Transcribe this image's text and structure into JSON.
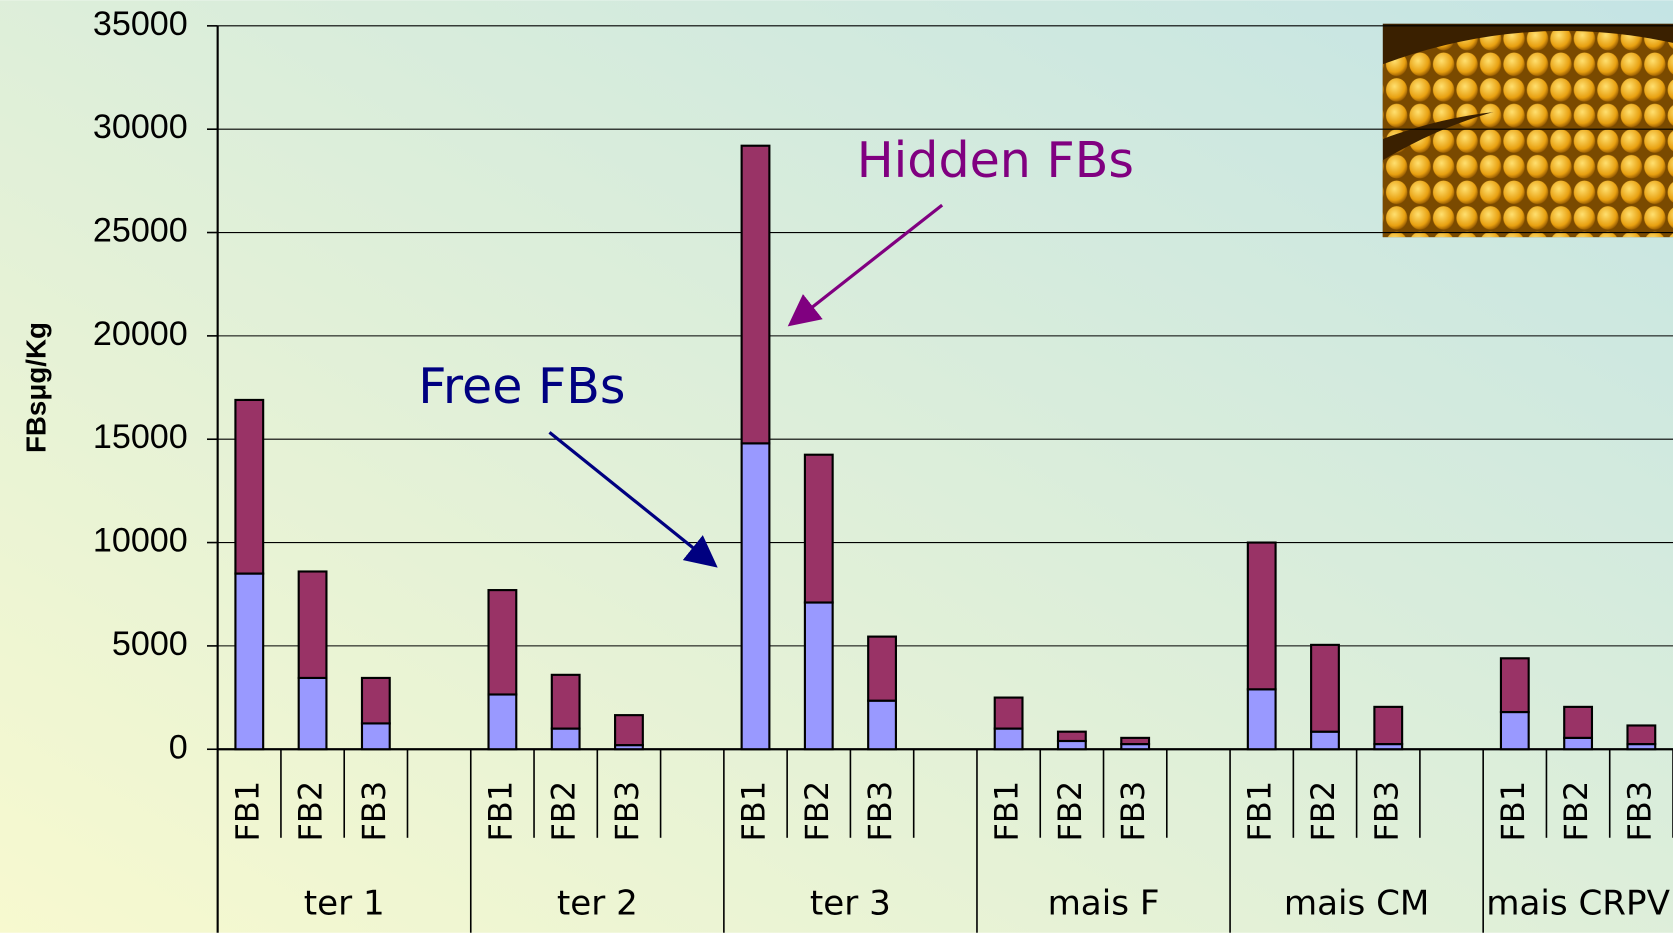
{
  "chart_data": {
    "type": "stacked_bar",
    "y_label": "FBsμg/Kg",
    "groups": [
      "ter 1",
      "ter 2",
      "ter 3",
      "mais F",
      "mais CM",
      "mais CRPV"
    ],
    "categories": [
      "FB1",
      "FB2",
      "FB3",
      null,
      "FB1",
      "FB2",
      "FB3",
      null,
      "FB1",
      "FB2",
      "FB3",
      null,
      "FB1",
      "FB2",
      "FB3",
      null,
      "FB1",
      "FB2",
      "FB3",
      null,
      "FB1",
      "FB2",
      "FB3"
    ],
    "series": [
      {
        "name": "Free FBs",
        "color": "#9999ff",
        "values": [
          8500,
          3450,
          1250,
          null,
          2650,
          1000,
          200,
          null,
          14800,
          7100,
          2350,
          null,
          1000,
          400,
          250,
          null,
          2900,
          850,
          250,
          null,
          1800,
          550,
          250
        ]
      },
      {
        "name": "Hidden FBs",
        "color": "#993366",
        "values": [
          8400,
          5150,
          2200,
          null,
          5050,
          2600,
          1450,
          null,
          14400,
          7150,
          3100,
          null,
          1500,
          450,
          300,
          null,
          7100,
          4200,
          1800,
          null,
          2600,
          1500,
          900
        ]
      }
    ],
    "ylim": [
      0,
      35000
    ],
    "yticks": [
      0,
      5000,
      10000,
      15000,
      20000,
      25000,
      30000,
      35000
    ],
    "grid": true
  }
}
